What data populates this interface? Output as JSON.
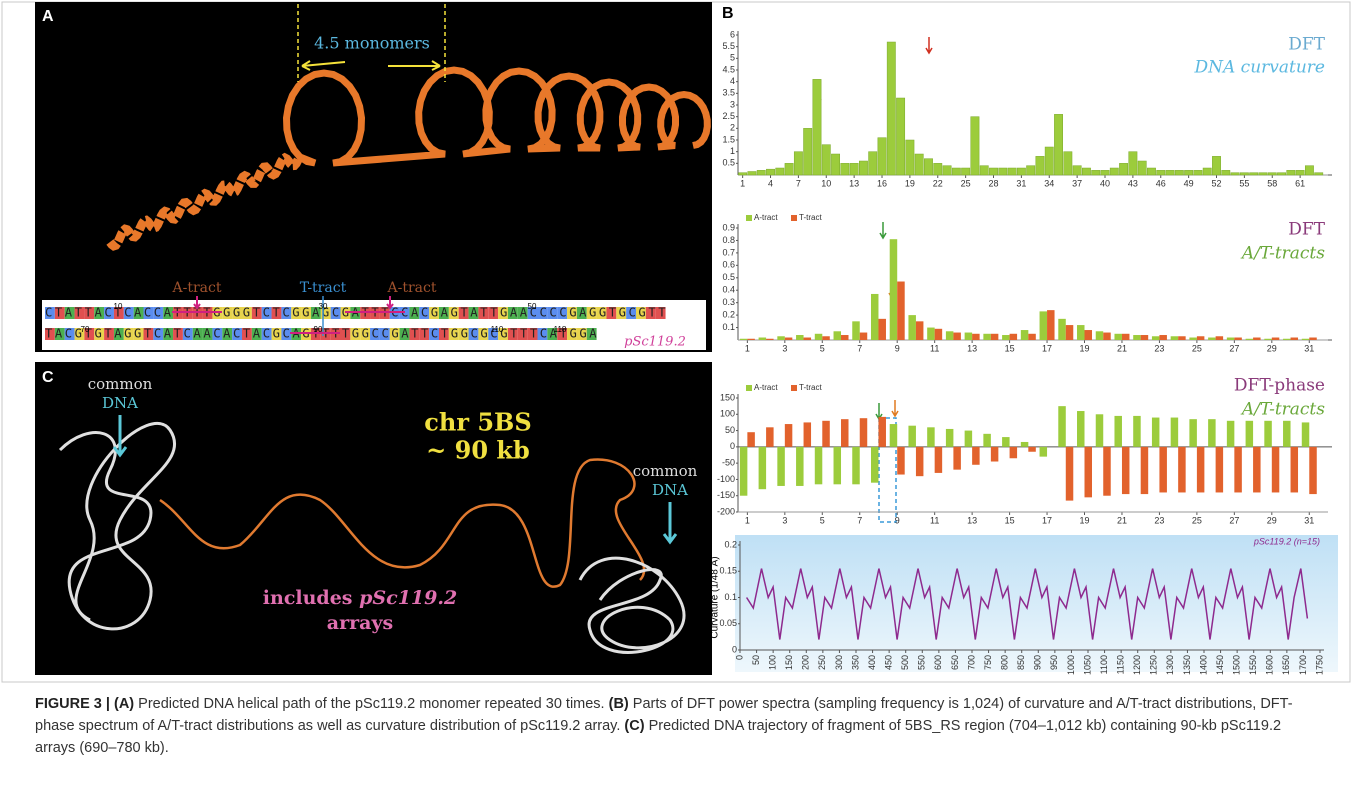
{
  "panel_a": {
    "label": "A",
    "monomers": "4.5 monomers",
    "tracts": [
      "A-tract",
      "T-tract",
      "A-tract"
    ],
    "seq_line_1": "CTATTACTCACCATTTTGGGGTCTCGGAGCGATTTCCACGAGTATTGAACCCCGAGGTGCGTT",
    "seq_line_2": "TACGTGTAGGTCATCAACACTACGCAGTTTTGGCCGATTCTGGCGCGTTTCATGGA",
    "positions_1": [
      "10",
      "30",
      "50"
    ],
    "positions_2": [
      "70",
      "90",
      "110",
      "118"
    ],
    "name": "pSc119.2"
  },
  "panel_b": {
    "label": "B"
  },
  "panel_c": {
    "label": "C",
    "left": [
      "common",
      "DNA"
    ],
    "right": [
      "common",
      "DNA"
    ],
    "chr": "chr 5BS",
    "size": "~ 90 kb",
    "includes": [
      "includes",
      "pSc119.2",
      "arrays"
    ]
  },
  "caption": [
    "FIGURE 3 |",
    "(A)",
    " Predicted DNA helical path of the pSc119.2 monomer repeated 30 times. ",
    "(B)",
    " Parts of DFT power spectra (sampling frequency is 1,024) of curvature and A/T-tract distributions, DFT-phase spectrum of A/T-tract distributions as well as curvature distribution of pSc119.2 array. ",
    "(C)",
    " Predicted DNA trajectory of fragment of 5BS_RS region (704–1,012 kb) containing 90-kb pSc119.2 arrays (690–780 kb)."
  ],
  "chart_data": [
    {
      "type": "bar",
      "title": "DFT",
      "subtitle": "DNA curvature",
      "color": "#9ccc3c",
      "x": [
        1,
        2,
        3,
        4,
        5,
        6,
        7,
        8,
        9,
        10,
        11,
        12,
        13,
        14,
        15,
        16,
        17,
        18,
        19,
        20,
        21,
        22,
        23,
        24,
        25,
        26,
        27,
        28,
        29,
        30,
        31,
        32,
        33,
        34,
        35,
        36,
        37,
        38,
        39,
        40,
        41,
        42,
        43,
        44,
        45,
        46,
        47,
        48,
        49,
        50,
        51,
        52,
        53,
        54,
        55,
        56,
        57,
        58,
        59,
        60,
        61,
        62,
        63
      ],
      "values": [
        0.1,
        0.15,
        0.2,
        0.25,
        0.3,
        0.5,
        1.0,
        2.0,
        4.1,
        1.3,
        0.9,
        0.5,
        0.5,
        0.6,
        1.0,
        1.6,
        5.7,
        3.3,
        1.5,
        0.9,
        0.7,
        0.5,
        0.4,
        0.3,
        0.3,
        2.5,
        0.4,
        0.3,
        0.3,
        0.3,
        0.3,
        0.4,
        0.8,
        1.2,
        2.6,
        1.0,
        0.4,
        0.3,
        0.2,
        0.2,
        0.3,
        0.5,
        1.0,
        0.6,
        0.3,
        0.2,
        0.2,
        0.2,
        0.2,
        0.2,
        0.3,
        0.8,
        0.2,
        0.1,
        0.1,
        0.1,
        0.1,
        0.1,
        0.1,
        0.2,
        0.2,
        0.4,
        0.1
      ],
      "xlim": [
        0.5,
        64
      ],
      "xticks": [
        1,
        4,
        7,
        10,
        13,
        16,
        19,
        22,
        25,
        28,
        31,
        34,
        37,
        40,
        43,
        46,
        49,
        52,
        55,
        58,
        61
      ],
      "ylim": [
        0,
        6
      ],
      "yticks": [
        0.5,
        1,
        1.5,
        2,
        2.5,
        3,
        3.5,
        4,
        4.5,
        5,
        5.5,
        6
      ]
    },
    {
      "type": "grouped-bar",
      "title": "DFT",
      "subtitle": "A/T-tracts",
      "x": [
        1,
        2,
        3,
        4,
        5,
        6,
        7,
        8,
        9,
        10,
        11,
        12,
        13,
        14,
        15,
        16,
        17,
        18,
        19,
        20,
        21,
        22,
        23,
        24,
        25,
        26,
        27,
        28,
        29,
        30,
        31
      ],
      "series": [
        {
          "name": "A-tract",
          "color": "#9ccc3c",
          "values": [
            0.01,
            0.02,
            0.03,
            0.04,
            0.05,
            0.07,
            0.15,
            0.37,
            0.81,
            0.2,
            0.1,
            0.07,
            0.06,
            0.05,
            0.04,
            0.08,
            0.23,
            0.17,
            0.12,
            0.07,
            0.05,
            0.04,
            0.03,
            0.03,
            0.02,
            0.02,
            0.02,
            0.01,
            0.01,
            0.01,
            0.01
          ]
        },
        {
          "name": "T-tract",
          "color": "#e2622c",
          "values": [
            0.01,
            0.01,
            0.02,
            0.02,
            0.03,
            0.04,
            0.06,
            0.17,
            0.47,
            0.15,
            0.09,
            0.06,
            0.05,
            0.05,
            0.05,
            0.05,
            0.24,
            0.12,
            0.08,
            0.06,
            0.05,
            0.04,
            0.04,
            0.03,
            0.03,
            0.03,
            0.02,
            0.02,
            0.02,
            0.02,
            0.02
          ]
        }
      ],
      "xlim": [
        0.5,
        32
      ],
      "xticks": [
        1,
        3,
        5,
        7,
        9,
        11,
        13,
        15,
        17,
        19,
        21,
        23,
        25,
        27,
        29,
        31
      ],
      "ylim": [
        0,
        0.9
      ],
      "yticks": [
        0.1,
        0.2,
        0.3,
        0.4,
        0.5,
        0.6,
        0.7,
        0.8,
        0.9
      ]
    },
    {
      "type": "grouped-bar",
      "title": "DFT-phase",
      "subtitle": "A/T-tracts",
      "x": [
        1,
        2,
        3,
        4,
        5,
        6,
        7,
        8,
        9,
        10,
        11,
        12,
        13,
        14,
        15,
        16,
        17,
        18,
        19,
        20,
        21,
        22,
        23,
        24,
        25,
        26,
        27,
        28,
        29,
        30,
        31
      ],
      "series": [
        {
          "name": "A-tract",
          "color": "#9ccc3c",
          "values": [
            -150,
            -130,
            -120,
            -120,
            -115,
            -115,
            -115,
            -110,
            70,
            65,
            60,
            55,
            50,
            40,
            30,
            15,
            -30,
            125,
            110,
            100,
            95,
            95,
            90,
            90,
            85,
            85,
            80,
            80,
            80,
            80,
            75
          ]
        },
        {
          "name": "T-tract",
          "color": "#e2622c",
          "values": [
            45,
            60,
            70,
            75,
            80,
            85,
            88,
            92,
            -85,
            -90,
            -80,
            -70,
            -55,
            -45,
            -35,
            -15,
            0,
            -165,
            -155,
            -150,
            -145,
            -145,
            -140,
            -140,
            -140,
            -140,
            -140,
            -140,
            -140,
            -140,
            -145
          ]
        }
      ],
      "xlim": [
        0.5,
        32
      ],
      "xticks": [
        1,
        3,
        5,
        7,
        9,
        11,
        13,
        15,
        17,
        19,
        21,
        23,
        25,
        27,
        29,
        31
      ],
      "ylim": [
        -200,
        150
      ],
      "yticks": [
        -200,
        -150,
        -100,
        -50,
        0,
        50,
        100,
        150
      ]
    },
    {
      "type": "line",
      "title": "pSc119.2 (n=15)",
      "y_label": "Curvature (1/48 Å)",
      "color": "#8e2a8e",
      "x": [
        20,
        40,
        65,
        85,
        100,
        120,
        138,
        158,
        183,
        203,
        218,
        238,
        256,
        276,
        301,
        321,
        336,
        356,
        374,
        394,
        419,
        439,
        454,
        474,
        492,
        512,
        537,
        557,
        572,
        592,
        610,
        630,
        655,
        675,
        690,
        710,
        728,
        748,
        773,
        793,
        808,
        828,
        846,
        866,
        891,
        911,
        926,
        946,
        964,
        984,
        1009,
        1029,
        1044,
        1064,
        1082,
        1102,
        1127,
        1147,
        1162,
        1182,
        1200,
        1220,
        1245,
        1265,
        1280,
        1300,
        1318,
        1338,
        1363,
        1383,
        1398,
        1418,
        1436,
        1456,
        1481,
        1501,
        1516,
        1536,
        1554,
        1574,
        1599,
        1619,
        1634,
        1654,
        1672,
        1692,
        1712
      ],
      "values": [
        0.1,
        0.08,
        0.155,
        0.1,
        0.12,
        0.02,
        0.1,
        0.08,
        0.155,
        0.1,
        0.12,
        0.02,
        0.1,
        0.08,
        0.155,
        0.1,
        0.12,
        0.02,
        0.1,
        0.08,
        0.155,
        0.1,
        0.12,
        0.02,
        0.1,
        0.08,
        0.155,
        0.1,
        0.12,
        0.02,
        0.1,
        0.08,
        0.155,
        0.1,
        0.12,
        0.02,
        0.1,
        0.08,
        0.155,
        0.1,
        0.12,
        0.02,
        0.1,
        0.08,
        0.155,
        0.1,
        0.12,
        0.02,
        0.1,
        0.08,
        0.155,
        0.1,
        0.12,
        0.02,
        0.1,
        0.08,
        0.155,
        0.1,
        0.12,
        0.02,
        0.1,
        0.08,
        0.155,
        0.1,
        0.12,
        0.02,
        0.1,
        0.08,
        0.155,
        0.1,
        0.12,
        0.02,
        0.1,
        0.08,
        0.155,
        0.1,
        0.12,
        0.02,
        0.1,
        0.08,
        0.155,
        0.1,
        0.12,
        0.02,
        0.1,
        0.155,
        0.06
      ],
      "xlim": [
        0,
        1750
      ],
      "xticks": [
        0,
        50,
        100,
        150,
        200,
        250,
        300,
        350,
        400,
        450,
        500,
        550,
        600,
        650,
        700,
        750,
        800,
        850,
        900,
        950,
        1000,
        1050,
        1100,
        1150,
        1200,
        1250,
        1300,
        1350,
        1400,
        1450,
        1500,
        1550,
        1600,
        1650,
        1700,
        1750
      ],
      "ylim": [
        0,
        0.2
      ],
      "yticks": [
        0,
        0.05,
        0.1,
        0.15,
        0.2
      ]
    }
  ]
}
